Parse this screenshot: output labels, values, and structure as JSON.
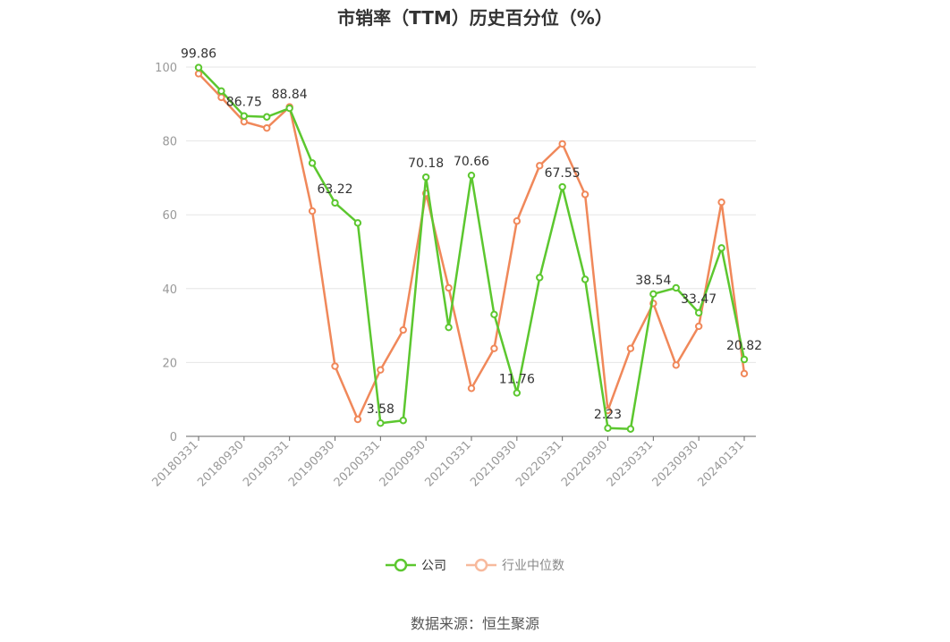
{
  "colors": {
    "company": "#5cc72f",
    "industry": "#f0885a",
    "grid": "#e6e6e6",
    "axis": "#666666"
  },
  "chart_data": {
    "type": "line",
    "title": "市销率（TTM）历史百分位（%）",
    "x": [
      "20180331",
      "20180630",
      "20180930",
      "20181231",
      "20190331",
      "20190630",
      "20190930",
      "20191231",
      "20200331",
      "20200630",
      "20200930",
      "20201231",
      "20210331",
      "20210630",
      "20210930",
      "20211231",
      "20220331",
      "20220630",
      "20220930",
      "20221231",
      "20230331",
      "20230630",
      "20230930",
      "20231231",
      "20240131"
    ],
    "x_tick_labels": [
      "20180331",
      "20180930",
      "20190331",
      "20190930",
      "20200331",
      "20200930",
      "20210331",
      "20210930",
      "20220331",
      "20220930",
      "20230331",
      "20230930",
      "20240131"
    ],
    "y_ticks": [
      0,
      20,
      40,
      60,
      80,
      100
    ],
    "ylim": [
      0,
      100
    ],
    "grid": true,
    "legend_position": "bottom",
    "series": [
      {
        "name": "公司",
        "color": "#5cc72f",
        "values": [
          99.86,
          93.5,
          86.75,
          86.5,
          88.84,
          74.0,
          63.22,
          57.8,
          3.58,
          4.3,
          70.18,
          29.5,
          70.66,
          33.0,
          11.76,
          43.0,
          67.55,
          42.5,
          2.23,
          2.0,
          38.54,
          40.2,
          33.47,
          51.0,
          20.82
        ],
        "labels": {
          "0": "99.86",
          "2": "86.75",
          "4": "88.84",
          "6": "63.22",
          "8": "3.58",
          "10": "70.18",
          "12": "70.66",
          "14": "11.76",
          "16": "67.55",
          "18": "2.23",
          "20": "38.54",
          "22": "33.47",
          "24": "20.82"
        }
      },
      {
        "name": "行业中位数",
        "color": "#f0885a",
        "values": [
          98.2,
          91.8,
          85.2,
          83.5,
          89.2,
          61.0,
          19.0,
          4.6,
          18.0,
          28.8,
          65.8,
          40.2,
          13.0,
          23.8,
          58.3,
          73.3,
          79.2,
          65.5,
          7.0,
          23.8,
          36.0,
          19.3,
          29.8,
          63.4,
          17.0
        ]
      }
    ]
  },
  "source": "数据来源：恒生聚源"
}
